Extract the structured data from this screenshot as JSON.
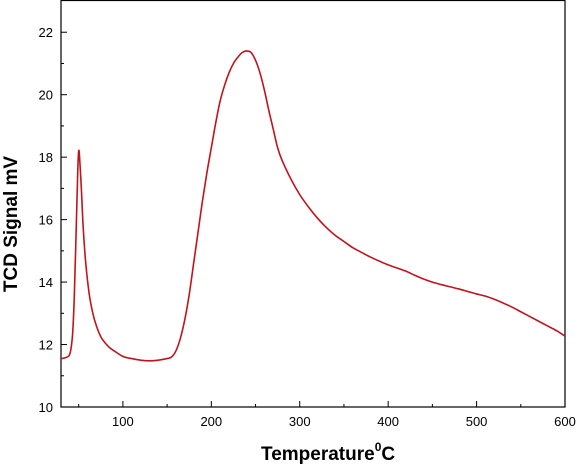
{
  "chart_data": {
    "type": "line",
    "title": "",
    "xlabel": "Temperature",
    "xlabel_superscript": "0",
    "xlabel_suffix": "C",
    "ylabel": "TCD Signal mV",
    "xlim": [
      30,
      600
    ],
    "ylim": [
      10,
      23
    ],
    "x_ticks": [
      100,
      200,
      300,
      400,
      500,
      600
    ],
    "y_ticks": [
      10,
      12,
      14,
      16,
      18,
      20,
      22
    ],
    "grid": false,
    "line_color": "#c0141c",
    "series": [
      {
        "x": [
          30,
          35,
          40,
          43,
          45,
          47,
          49,
          50,
          51,
          53,
          55,
          58,
          62,
          66,
          70,
          75,
          80,
          85,
          90,
          100,
          110,
          120,
          130,
          140,
          150,
          155,
          160,
          165,
          170,
          175,
          180,
          185,
          190,
          195,
          200,
          205,
          210,
          215,
          220,
          225,
          230,
          235,
          240,
          245,
          250,
          255,
          260,
          265,
          270,
          275,
          280,
          290,
          300,
          310,
          320,
          330,
          340,
          350,
          360,
          370,
          380,
          390,
          400,
          410,
          420,
          430,
          440,
          450,
          460,
          470,
          480,
          490,
          500,
          510,
          520,
          530,
          540,
          550,
          560,
          570,
          580,
          590,
          600
        ],
        "y": [
          11.55,
          11.58,
          11.7,
          12.3,
          13.5,
          15.5,
          17.6,
          18.2,
          18.0,
          17.0,
          15.8,
          14.6,
          13.6,
          13.0,
          12.6,
          12.25,
          12.05,
          11.9,
          11.8,
          11.62,
          11.55,
          11.5,
          11.48,
          11.5,
          11.55,
          11.6,
          11.8,
          12.2,
          12.8,
          13.6,
          14.6,
          15.6,
          16.6,
          17.5,
          18.3,
          19.1,
          19.8,
          20.3,
          20.7,
          21.0,
          21.2,
          21.35,
          21.4,
          21.35,
          21.1,
          20.7,
          20.15,
          19.5,
          18.9,
          18.3,
          17.9,
          17.3,
          16.8,
          16.4,
          16.05,
          15.75,
          15.5,
          15.3,
          15.1,
          14.95,
          14.8,
          14.67,
          14.55,
          14.45,
          14.35,
          14.22,
          14.1,
          14.0,
          13.92,
          13.85,
          13.78,
          13.7,
          13.62,
          13.55,
          13.45,
          13.33,
          13.2,
          13.05,
          12.9,
          12.75,
          12.6,
          12.45,
          12.27
        ]
      }
    ]
  }
}
